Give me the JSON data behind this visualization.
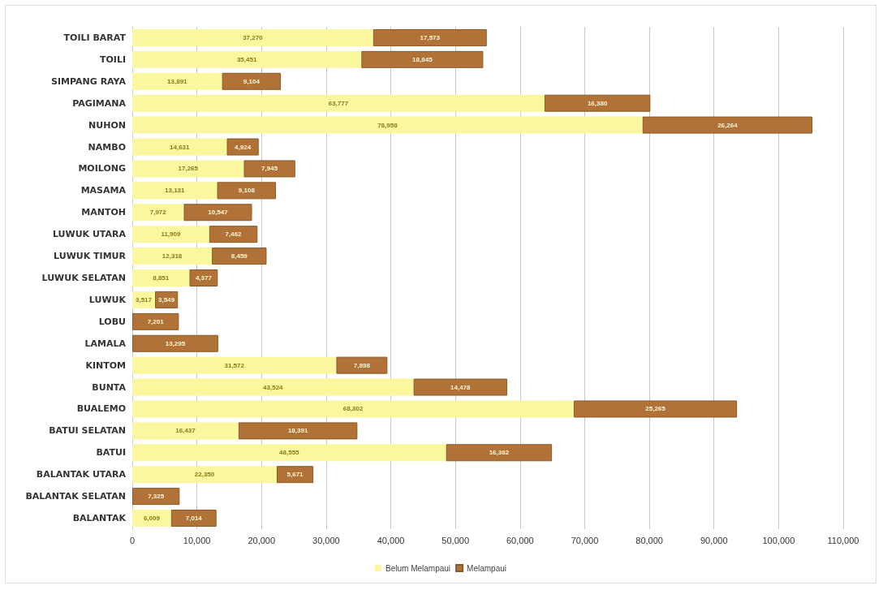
{
  "chart_data": {
    "type": "bar",
    "orientation": "horizontal",
    "stacked": true,
    "categories": [
      "TOILI BARAT",
      "TOILI",
      "SIMPANG RAYA",
      "PAGIMANA",
      "NUHON",
      "NAMBO",
      "MOILONG",
      "MASAMA",
      "MANTOH",
      "LUWUK UTARA",
      "LUWUK TIMUR",
      "LUWUK SELATAN",
      "LUWUK",
      "LOBU",
      "LAMALA",
      "KINTOM",
      "BUNTA",
      "BUALEMO",
      "BATUI SELATAN",
      "BATUI",
      "BALANTAK UTARA",
      "BALANTAK SELATAN",
      "BALANTAK"
    ],
    "series": [
      {
        "name": "Belum Melampaui",
        "color": "#fbf79e",
        "values": [
          37270,
          35451,
          13891,
          63777,
          78958,
          14631,
          17265,
          13131,
          7972,
          11909,
          12318,
          8851,
          3517,
          null,
          null,
          31572,
          43524,
          68302,
          16437,
          48555,
          22350,
          null,
          6009
        ],
        "value_labels": [
          "37,270",
          "35,451",
          "13,891",
          "63,777",
          "78,958",
          "14,631",
          "17,265",
          "13,131",
          "7,972",
          "11,909",
          "12,318",
          "8,851",
          "3,517",
          null,
          null,
          "31,572",
          "43,524",
          "68,302",
          "16,437",
          "48,555",
          "22,350",
          null,
          "6,009"
        ]
      },
      {
        "name": "Melampaui",
        "color": "#b07237",
        "values": [
          17573,
          18845,
          9104,
          16380,
          26264,
          4924,
          7945,
          9108,
          10547,
          7462,
          8459,
          4377,
          3549,
          7201,
          13295,
          7898,
          14478,
          25265,
          18391,
          16382,
          5671,
          7325,
          7014
        ],
        "value_labels": [
          "17,573",
          "18,845",
          "9,104",
          "16,380",
          "26,264",
          "4,924",
          "7,945",
          "9,108",
          "10,547",
          "7,462",
          "8,459",
          "4,377",
          "3,549",
          "7,201",
          "13,295",
          "7,898",
          "14,478",
          "25,265",
          "18,391",
          "16,382",
          "5,671",
          "7,325",
          "7,014"
        ]
      }
    ],
    "xlim": [
      0,
      110000
    ],
    "xticks": [
      0,
      {
        "value": 10000,
        "label": "10,000"
      },
      {
        "value": 20000,
        "label": "20,000"
      },
      {
        "value": 30000,
        "label": "30,000"
      },
      {
        "value": 40000,
        "label": "40,000"
      },
      {
        "value": 50000,
        "label": "50,000"
      },
      {
        "value": 60000,
        "label": "60,000"
      },
      {
        "value": 70000,
        "label": "70,000"
      },
      {
        "value": 80000,
        "label": "80,000"
      },
      {
        "value": 90000,
        "label": "90,000"
      },
      {
        "value": 100000,
        "label": "100,000"
      },
      {
        "value": 110000,
        "label": "110,000"
      }
    ],
    "grid": "x",
    "legend": "bottom"
  }
}
